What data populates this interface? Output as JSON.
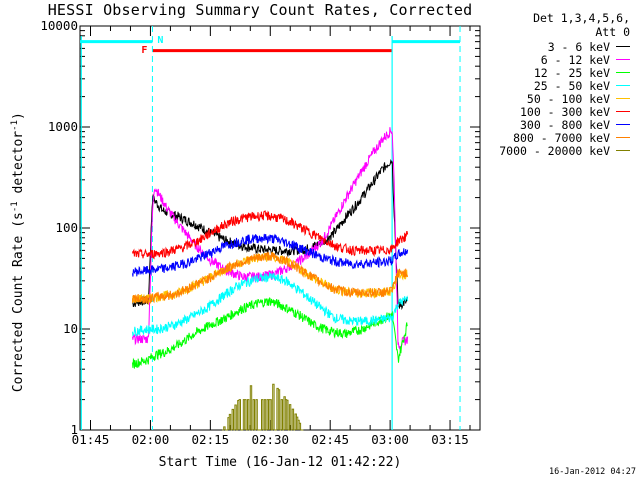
{
  "chart_data": {
    "type": "line",
    "title": "HESSI Observing Summary Count Rates, Corrected",
    "xlabel": "Start Time (16-Jan-12 01:42:22)",
    "ylabel": "Corrected Count Rate (s",
    "ylabel_sup": "-1",
    "ylabel_mid": " detector",
    "ylabel_end": ")",
    "yscale": "log",
    "ylim": [
      1,
      10000
    ],
    "xlim_minutes_of_day": [
      102.37,
      202.5
    ],
    "x_ticks": [
      {
        "label": "01:45",
        "t": 105
      },
      {
        "label": "02:00",
        "t": 120
      },
      {
        "label": "02:15",
        "t": 135
      },
      {
        "label": "02:30",
        "t": 150
      },
      {
        "label": "02:45",
        "t": 165
      },
      {
        "label": "03:00",
        "t": 180
      },
      {
        "label": "03:15",
        "t": 195
      }
    ],
    "y_ticks": [
      {
        "label": "1",
        "v": 1
      },
      {
        "label": "10",
        "v": 10
      },
      {
        "label": "100",
        "v": 100
      },
      {
        "label": "1000",
        "v": 1000
      },
      {
        "label": "10000",
        "v": 10000
      }
    ],
    "legend_header": [
      "Det 1,3,4,5,6,",
      "Att 0"
    ],
    "series": [
      {
        "name": "3 - 6 keV",
        "color": "#000000",
        "points": [
          [
            115.5,
            18
          ],
          [
            118,
            19
          ],
          [
            119.5,
            19
          ],
          [
            120.5,
            200
          ],
          [
            123,
            150
          ],
          [
            127,
            130
          ],
          [
            131,
            110
          ],
          [
            135,
            90
          ],
          [
            139,
            75
          ],
          [
            143,
            67
          ],
          [
            147,
            62
          ],
          [
            151,
            60
          ],
          [
            155,
            60
          ],
          [
            159,
            62
          ],
          [
            163,
            72
          ],
          [
            166,
            90
          ],
          [
            169,
            130
          ],
          [
            172,
            180
          ],
          [
            175,
            260
          ],
          [
            178,
            380
          ],
          [
            180.5,
            480
          ],
          [
            181,
            150
          ],
          [
            182,
            17
          ],
          [
            184.5,
            19
          ]
        ]
      },
      {
        "name": "6 - 12 keV",
        "color": "#ff00ff",
        "points": [
          [
            115.5,
            8
          ],
          [
            119.5,
            8
          ],
          [
            120.5,
            140
          ],
          [
            121,
            260
          ],
          [
            124,
            160
          ],
          [
            127,
            110
          ],
          [
            131,
            70
          ],
          [
            135,
            48
          ],
          [
            139,
            38
          ],
          [
            143,
            33
          ],
          [
            147,
            33
          ],
          [
            151,
            35
          ],
          [
            155,
            42
          ],
          [
            159,
            52
          ],
          [
            163,
            75
          ],
          [
            166,
            120
          ],
          [
            169,
            200
          ],
          [
            172,
            320
          ],
          [
            175,
            500
          ],
          [
            178,
            750
          ],
          [
            180.5,
            950
          ],
          [
            181,
            300
          ],
          [
            182,
            7
          ],
          [
            184.5,
            8
          ]
        ]
      },
      {
        "name": "12 - 25 keV",
        "color": "#00ff00",
        "points": [
          [
            115.5,
            4.5
          ],
          [
            119.5,
            5
          ],
          [
            121,
            5.5
          ],
          [
            124,
            6
          ],
          [
            127,
            7
          ],
          [
            131,
            9
          ],
          [
            135,
            11
          ],
          [
            139,
            13
          ],
          [
            143,
            16
          ],
          [
            147,
            18
          ],
          [
            150,
            19
          ],
          [
            153,
            17
          ],
          [
            157,
            14
          ],
          [
            161,
            11
          ],
          [
            165,
            9.5
          ],
          [
            169,
            9
          ],
          [
            173,
            10
          ],
          [
            177,
            12
          ],
          [
            180.5,
            14
          ],
          [
            182,
            5
          ],
          [
            184.5,
            12
          ]
        ]
      },
      {
        "name": "25 - 50 keV",
        "color": "#00ffff",
        "points": [
          [
            115.5,
            9.5
          ],
          [
            119.5,
            10
          ],
          [
            122,
            10
          ],
          [
            126,
            11
          ],
          [
            130,
            13
          ],
          [
            134,
            16
          ],
          [
            138,
            21
          ],
          [
            142,
            27
          ],
          [
            146,
            31
          ],
          [
            150,
            33
          ],
          [
            154,
            30
          ],
          [
            158,
            23
          ],
          [
            162,
            17
          ],
          [
            166,
            13
          ],
          [
            170,
            12
          ],
          [
            174,
            12
          ],
          [
            178,
            12.5
          ],
          [
            180.5,
            13
          ],
          [
            182,
            18
          ],
          [
            184.5,
            20
          ]
        ]
      },
      {
        "name": "50 - 100 keV",
        "color": "#ffc000",
        "points": [
          [
            115.5,
            20
          ],
          [
            119.5,
            20
          ],
          [
            122,
            21
          ],
          [
            126,
            22
          ],
          [
            130,
            26
          ],
          [
            134,
            31
          ],
          [
            138,
            38
          ],
          [
            142,
            45
          ],
          [
            146,
            50
          ],
          [
            150,
            52
          ],
          [
            154,
            47
          ],
          [
            158,
            38
          ],
          [
            162,
            30
          ],
          [
            166,
            25
          ],
          [
            170,
            23
          ],
          [
            174,
            23
          ],
          [
            178,
            23
          ],
          [
            180.5,
            24
          ],
          [
            182,
            35
          ],
          [
            184.5,
            35
          ]
        ]
      },
      {
        "name": "100 - 300 keV",
        "color": "#ff0000",
        "points": [
          [
            115.5,
            55
          ],
          [
            119.5,
            55
          ],
          [
            124,
            58
          ],
          [
            128,
            64
          ],
          [
            132,
            75
          ],
          [
            136,
            95
          ],
          [
            140,
            115
          ],
          [
            144,
            128
          ],
          [
            148,
            133
          ],
          [
            151,
            130
          ],
          [
            155,
            115
          ],
          [
            159,
            95
          ],
          [
            163,
            78
          ],
          [
            167,
            65
          ],
          [
            171,
            60
          ],
          [
            175,
            60
          ],
          [
            178,
            60
          ],
          [
            180.5,
            62
          ],
          [
            182,
            75
          ],
          [
            184.5,
            85
          ]
        ]
      },
      {
        "name": "300 - 800 keV",
        "color": "#0000ff",
        "points": [
          [
            115.5,
            37
          ],
          [
            119.5,
            38
          ],
          [
            124,
            40
          ],
          [
            128,
            44
          ],
          [
            132,
            50
          ],
          [
            136,
            60
          ],
          [
            140,
            70
          ],
          [
            144,
            77
          ],
          [
            148,
            80
          ],
          [
            151,
            78
          ],
          [
            155,
            70
          ],
          [
            159,
            60
          ],
          [
            163,
            51
          ],
          [
            167,
            46
          ],
          [
            171,
            44
          ],
          [
            175,
            45
          ],
          [
            178,
            46
          ],
          [
            180.5,
            48
          ],
          [
            182,
            55
          ],
          [
            184.5,
            60
          ]
        ]
      },
      {
        "name": "800 - 7000 keV",
        "color": "#ff8000",
        "points": [
          [
            115.5,
            20
          ],
          [
            119.5,
            20
          ],
          [
            122,
            21
          ],
          [
            126,
            22
          ],
          [
            130,
            26
          ],
          [
            134,
            31
          ],
          [
            138,
            38
          ],
          [
            142,
            45
          ],
          [
            146,
            50
          ],
          [
            150,
            53
          ],
          [
            154,
            47
          ],
          [
            158,
            38
          ],
          [
            162,
            30
          ],
          [
            166,
            25
          ],
          [
            170,
            23
          ],
          [
            174,
            23
          ],
          [
            178,
            23
          ],
          [
            180.5,
            24
          ],
          [
            182,
            36
          ],
          [
            184.5,
            36
          ]
        ]
      },
      {
        "name": "7000 - 20000 keV",
        "color": "#808000",
        "points": [
          [
            138,
            1
          ],
          [
            140,
            1.5
          ],
          [
            142,
            2
          ],
          [
            144,
            2.5
          ],
          [
            146,
            3
          ],
          [
            148,
            3
          ],
          [
            150,
            3
          ],
          [
            152,
            2.5
          ],
          [
            154,
            2
          ],
          [
            156,
            1.5
          ],
          [
            158,
            1
          ]
        ]
      }
    ],
    "status_bars": [
      {
        "label": "N",
        "color": "#00ffff",
        "level": 7000
      },
      {
        "label": "F",
        "color": "#ff0000",
        "level": 5700
      }
    ],
    "grid": false
  },
  "footer_date": "16-Jan-2012 04:27",
  "flags": {
    "night": "N",
    "flare": "F"
  }
}
